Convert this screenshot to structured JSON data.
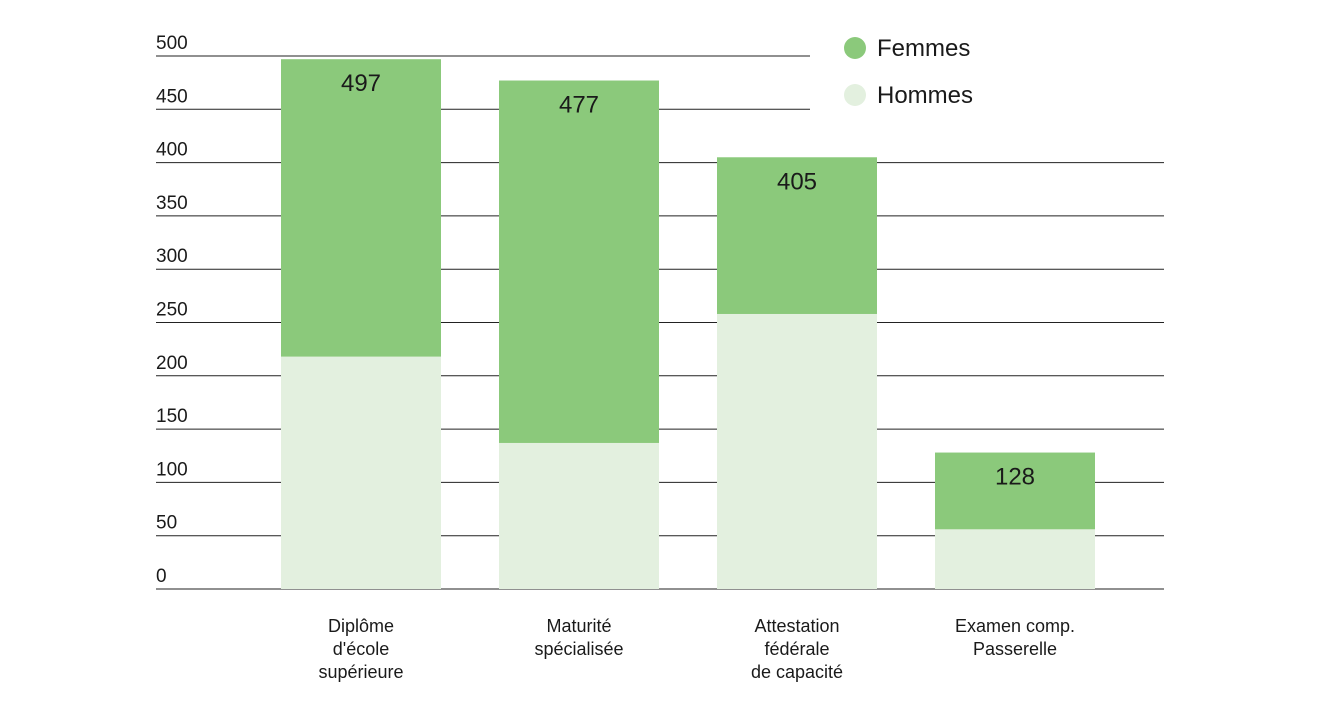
{
  "colors": {
    "femmes": "#8bc97b",
    "hommes": "#e3f0df",
    "grid": "#222222",
    "text": "#1a1a1a"
  },
  "chart_data": {
    "type": "bar",
    "stacked": true,
    "title": "",
    "xlabel": "",
    "ylabel": "",
    "ylim": [
      0,
      500
    ],
    "yticks": [
      0,
      50,
      100,
      150,
      200,
      250,
      300,
      350,
      400,
      450,
      500
    ],
    "grid": true,
    "legend_position": "top-right",
    "categories": [
      [
        "Diplôme",
        "d'école",
        "supérieure"
      ],
      [
        "Maturité",
        "spécialisée"
      ],
      [
        "Attestation",
        "fédérale",
        "de capacité"
      ],
      [
        "Examen comp.",
        "Passerelle"
      ]
    ],
    "totals": [
      497,
      477,
      405,
      128
    ],
    "series": [
      {
        "name": "Hommes",
        "key": "hommes",
        "values": [
          218,
          137,
          258,
          56
        ]
      },
      {
        "name": "Femmes",
        "key": "femmes",
        "values": [
          279,
          340,
          147,
          72
        ]
      }
    ],
    "legend": [
      {
        "name": "Femmes",
        "key": "femmes"
      },
      {
        "name": "Hommes",
        "key": "hommes"
      }
    ]
  }
}
